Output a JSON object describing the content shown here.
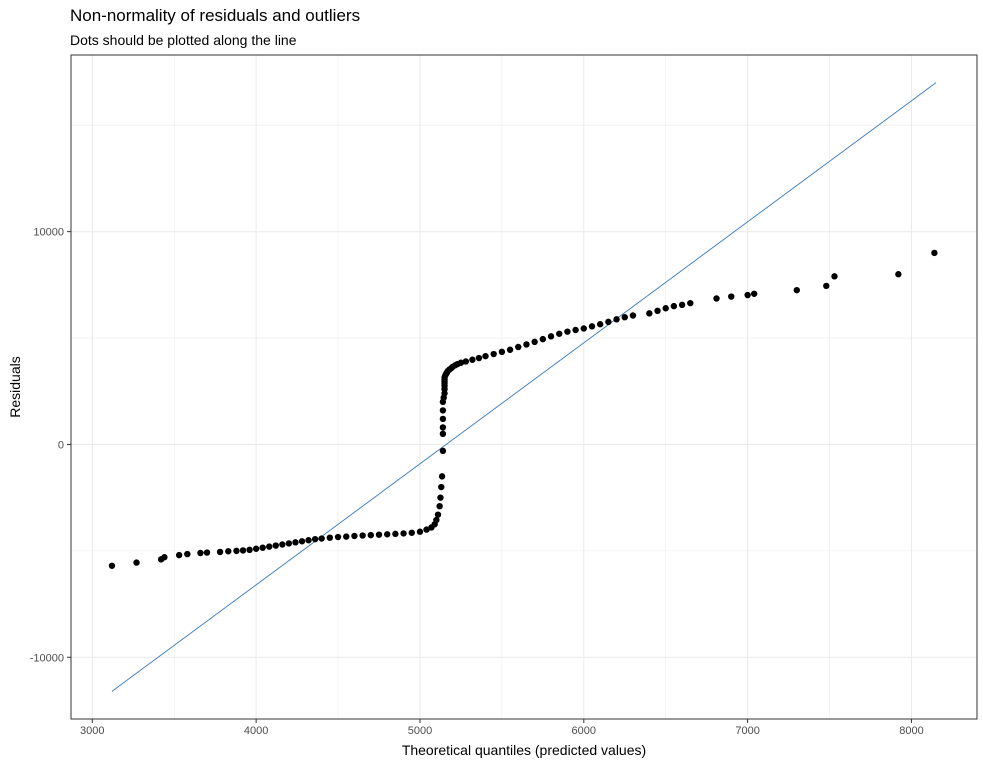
{
  "chart_data": {
    "type": "scatter",
    "title": "Non-normality of residuals and outliers",
    "subtitle": "Dots should be plotted along the line",
    "xlabel": "Theoretical quantiles (predicted values)",
    "ylabel": "Residuals",
    "xlim": [
      2870,
      8400
    ],
    "ylim": [
      -12900,
      18300
    ],
    "x_ticks": [
      3000,
      4000,
      5000,
      6000,
      7000,
      8000
    ],
    "y_ticks": [
      -10000,
      0,
      10000
    ],
    "x_tick_labels": [
      "3000",
      "4000",
      "5000",
      "6000",
      "7000",
      "8000"
    ],
    "y_tick_labels": [
      "-10000",
      "0",
      "10000"
    ],
    "grid": true,
    "colors": {
      "points": "#000000",
      "reference_line": "#3a78c3",
      "grid": "#ebebeb",
      "panel_border": "#333333"
    },
    "reference_line": {
      "x": [
        3120,
        8150
      ],
      "y": [
        -11600,
        17000
      ]
    },
    "points": {
      "x": [
        3120,
        3270,
        3420,
        3440,
        3530,
        3580,
        3660,
        3700,
        3780,
        3830,
        3880,
        3920,
        3960,
        4000,
        4040,
        4080,
        4120,
        4160,
        4200,
        4240,
        4280,
        4320,
        4360,
        4400,
        4450,
        4500,
        4550,
        4600,
        4650,
        4700,
        4750,
        4800,
        4850,
        4900,
        4950,
        5000,
        5040,
        5070,
        5090,
        5100,
        5110,
        5120,
        5125,
        5130,
        5135,
        5140,
        5140,
        5140,
        5140,
        5140,
        5140,
        5145,
        5150,
        5150,
        5150,
        5150,
        5150,
        5150,
        5150,
        5155,
        5160,
        5165,
        5170,
        5180,
        5190,
        5200,
        5215,
        5230,
        5250,
        5280,
        5320,
        5360,
        5400,
        5450,
        5500,
        5550,
        5600,
        5650,
        5700,
        5750,
        5800,
        5850,
        5900,
        5950,
        6000,
        6050,
        6100,
        6150,
        6200,
        6250,
        6300,
        6400,
        6450,
        6500,
        6550,
        6600,
        6650,
        6810,
        6900,
        7000,
        7040,
        7300,
        7480,
        7530,
        7920,
        8140
      ],
      "y": [
        -5700,
        -5550,
        -5400,
        -5300,
        -5200,
        -5150,
        -5100,
        -5080,
        -5050,
        -5020,
        -5000,
        -4980,
        -4950,
        -4900,
        -4850,
        -4800,
        -4750,
        -4700,
        -4650,
        -4600,
        -4550,
        -4500,
        -4450,
        -4420,
        -4380,
        -4350,
        -4330,
        -4300,
        -4280,
        -4260,
        -4240,
        -4220,
        -4200,
        -4180,
        -4150,
        -4100,
        -4000,
        -3900,
        -3750,
        -3550,
        -3300,
        -2900,
        -2500,
        -2000,
        -1500,
        -300,
        500,
        800,
        1200,
        1600,
        2000,
        2200,
        2400,
        2600,
        2750,
        2850,
        2950,
        3050,
        3150,
        3250,
        3320,
        3380,
        3450,
        3520,
        3580,
        3650,
        3720,
        3780,
        3840,
        3900,
        3980,
        4060,
        4150,
        4250,
        4350,
        4450,
        4580,
        4700,
        4820,
        4950,
        5080,
        5200,
        5300,
        5380,
        5450,
        5550,
        5650,
        5760,
        5880,
        5980,
        6060,
        6160,
        6280,
        6400,
        6500,
        6560,
        6640,
        6860,
        6950,
        7020,
        7080,
        7250,
        7450,
        7900,
        8000,
        9000
      ]
    }
  }
}
